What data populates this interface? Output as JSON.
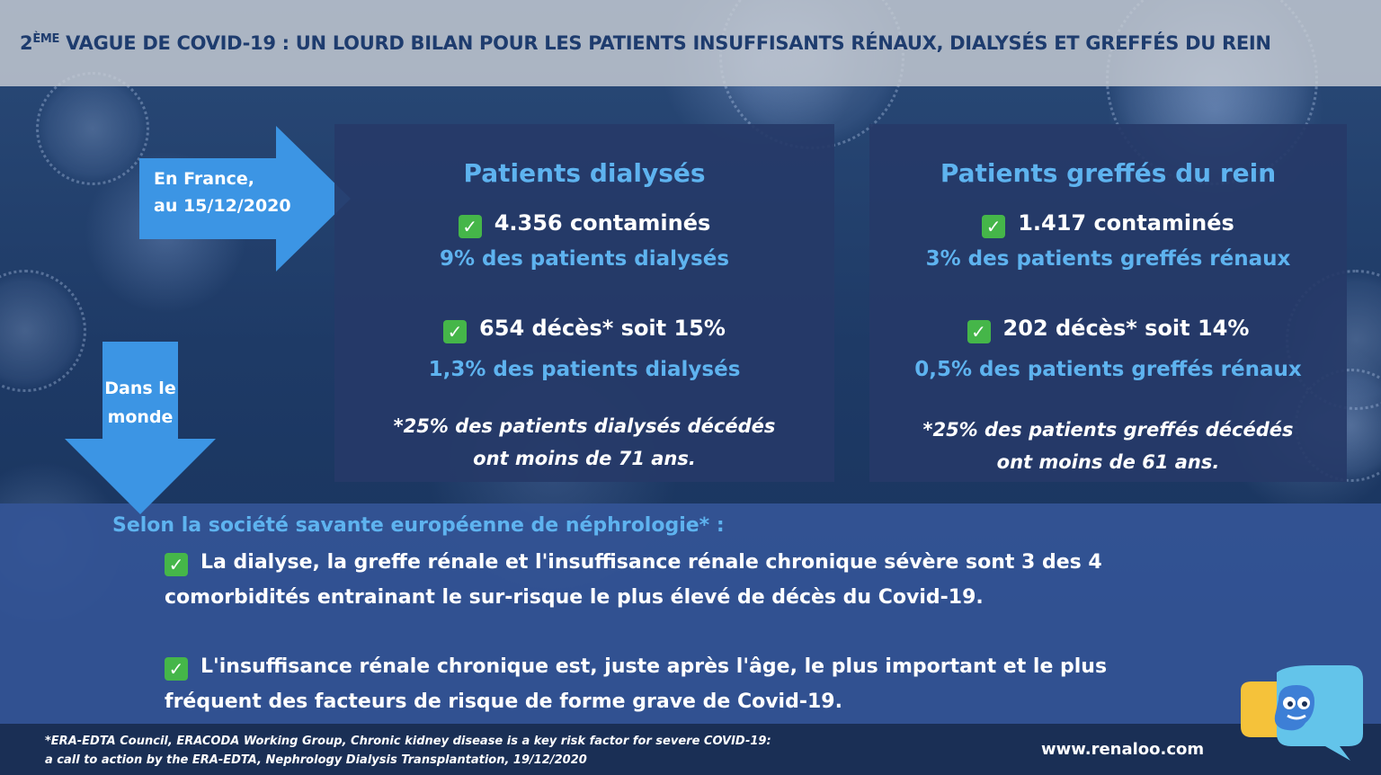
{
  "header": {
    "title_prefix": "2",
    "title_sup": "ÈME",
    "title_rest": " VAGUE DE COVID-19 : UN LOURD BILAN POUR LES PATIENTS INSUFFISANTS RÉNAUX,  DIALYSÉS ET GREFFÉS DU REIN"
  },
  "arrows": {
    "france_line1": "En France,",
    "france_line2": "au 15/12/2020",
    "world_line1": "Dans le",
    "world_line2": "monde"
  },
  "cards": {
    "dialyses": {
      "title": "Patients dialysés",
      "contamines": "4.356 contaminés",
      "contamines_pct": "9% des patients dialysés",
      "deces": "654 décès* soit 15%",
      "deces_pct": "1,3% des patients dialysés",
      "note_line1": "*25% des patients dialysés décédés",
      "note_line2": "ont moins de 71 ans."
    },
    "greffes": {
      "title": "Patients greffés du rein",
      "contamines": "1.417 contaminés",
      "contamines_pct": "3% des patients greffés rénaux",
      "deces": "202 décès* soit 14%",
      "deces_pct": "0,5% des patients greffés rénaux",
      "note_line1": "*25% des patients greffés décédés",
      "note_line2": "ont moins de 61 ans."
    }
  },
  "check_glyph": "✓",
  "bottom": {
    "lead": "Selon la société savante européenne de néphrologie* :",
    "point1_line1": "La dialyse, la greffe rénale et l'insuffisance rénale chronique sévère sont 3 des 4",
    "point1_line2": "comorbidités entrainant le sur-risque le plus élevé de décès du Covid-19.",
    "point2_line1": "L'insuffisance rénale chronique est, juste après l'âge, le plus important et le plus",
    "point2_line2": "fréquent des facteurs de risque de forme grave de Covid-19."
  },
  "footer": {
    "ref_line1": "*ERA-EDTA Council, ERACODA Working Group, Chronic kidney disease is a key risk factor for severe COVID-19:",
    "ref_line2": "a call to action by the ERA-EDTA, Nephrology Dialysis Transplantation, 19/12/2020",
    "url": "www.renaloo.com"
  },
  "colors": {
    "accent_blue": "#5eb3ef",
    "check_green": "#45b649",
    "header_text": "#1e3c6e"
  }
}
